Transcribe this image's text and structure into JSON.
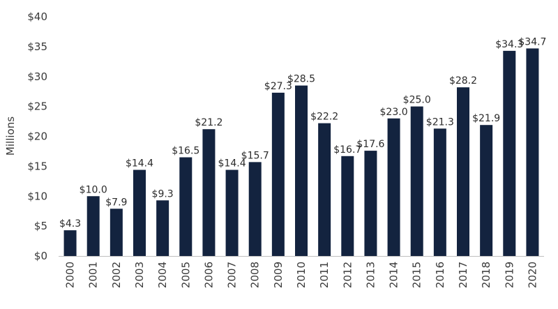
{
  "chart_data": {
    "type": "bar",
    "title": "",
    "xlabel": "",
    "ylabel": "Millions",
    "ylim": [
      0,
      40
    ],
    "ytick_values": [
      0,
      5,
      10,
      15,
      20,
      25,
      30,
      35,
      40
    ],
    "ytick_labels": [
      "$0",
      "$5",
      "$10",
      "$15",
      "$20",
      "$25",
      "$30",
      "$35",
      "$40"
    ],
    "grid": false,
    "legend": "none",
    "bar_color": "#13233f",
    "categories": [
      "2000",
      "2001",
      "2002",
      "2003",
      "2004",
      "2005",
      "2006",
      "2007",
      "2008",
      "2009",
      "2010",
      "2011",
      "2012",
      "2013",
      "2014",
      "2015",
      "2016",
      "2017",
      "2018",
      "2019",
      "2020"
    ],
    "values": [
      4.3,
      10.0,
      7.9,
      14.4,
      9.3,
      16.5,
      21.2,
      14.4,
      15.7,
      27.3,
      28.5,
      22.2,
      16.7,
      17.6,
      23.0,
      25.0,
      21.3,
      28.2,
      21.9,
      34.3,
      34.7
    ],
    "data_labels": [
      "$4.3",
      "$10.0",
      "$7.9",
      "$14.4",
      "$9.3",
      "$16.5",
      "$21.2",
      "$14.4",
      "$15.7",
      "$27.3",
      "$28.5",
      "$22.2",
      "$16.7",
      "$17.6",
      "$23.0",
      "$25.0",
      "$21.3",
      "$28.2",
      "$21.9",
      "$34.3",
      "$34.7"
    ]
  }
}
